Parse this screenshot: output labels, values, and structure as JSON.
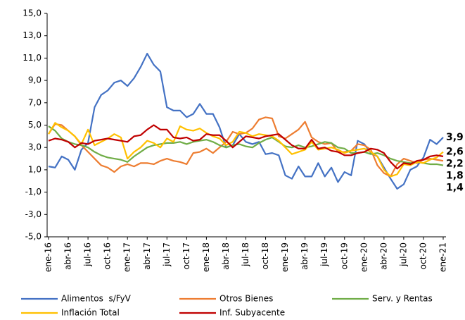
{
  "chart_data": {
    "type": "line",
    "categories": [
      "ene-16",
      null,
      null,
      "abr-16",
      null,
      null,
      "jul-16",
      null,
      null,
      "oct-16",
      null,
      null,
      "ene-17",
      null,
      null,
      "abr-17",
      null,
      null,
      "jul-17",
      null,
      null,
      "oct-17",
      null,
      null,
      "ene-18",
      null,
      null,
      "abr-18",
      null,
      null,
      "jul-18",
      null,
      null,
      "oct-18",
      null,
      null,
      "ene-19",
      null,
      null,
      "abr-19",
      null,
      null,
      "jul-19",
      null,
      null,
      "oct-19",
      null,
      null,
      "ene-20",
      null,
      null,
      "abr-20",
      null,
      null,
      "jul-20",
      null,
      null,
      "oct-20",
      null,
      null,
      "ene-21"
    ],
    "series": [
      {
        "name": "Alimentos  s/FyV",
        "color": "#4472c4",
        "values": [
          1.3,
          1.2,
          2.2,
          1.9,
          1.0,
          2.8,
          3.4,
          6.6,
          7.7,
          8.1,
          8.8,
          9.0,
          8.5,
          9.2,
          10.2,
          11.4,
          10.4,
          9.8,
          6.6,
          6.3,
          6.3,
          5.7,
          6.0,
          6.9,
          6.0,
          6.0,
          4.8,
          3.0,
          3.2,
          4.2,
          3.5,
          3.3,
          3.5,
          2.4,
          2.5,
          2.3,
          0.5,
          0.2,
          1.3,
          0.4,
          0.4,
          1.6,
          0.4,
          1.2,
          -0.1,
          0.8,
          0.5,
          3.6,
          3.3,
          2.5,
          2.2,
          1.2,
          0.2,
          -0.7,
          -0.3,
          1.0,
          1.3,
          2.1,
          3.7,
          3.3,
          3.9
        ],
        "value_labels": [
          null,
          null,
          null,
          null,
          null,
          null,
          null,
          null,
          null,
          null,
          null,
          null,
          null,
          null,
          null,
          null,
          null,
          null,
          null,
          null,
          null,
          null,
          null,
          null,
          null,
          null,
          null,
          null,
          null,
          null,
          null,
          null,
          null,
          null,
          null,
          null,
          null,
          null,
          null,
          null,
          null,
          null,
          null,
          null,
          null,
          null,
          null,
          null,
          null,
          null,
          null,
          null,
          null,
          null,
          null,
          null,
          null,
          null,
          null,
          null,
          "3,9"
        ]
      },
      {
        "name": "Otros Bienes",
        "color": "#ed7d31",
        "values": [
          4.2,
          5.1,
          5.0,
          4.5,
          4.0,
          3.2,
          2.6,
          2.0,
          1.4,
          1.2,
          0.8,
          1.3,
          1.5,
          1.3,
          1.6,
          1.6,
          1.5,
          1.8,
          2.0,
          1.8,
          1.7,
          1.5,
          2.5,
          2.6,
          2.9,
          2.5,
          3.0,
          3.5,
          4.4,
          4.2,
          4.3,
          4.7,
          5.5,
          5.7,
          5.6,
          4.0,
          3.8,
          4.2,
          4.6,
          5.3,
          3.9,
          3.5,
          3.3,
          3.4,
          2.6,
          2.6,
          2.7,
          3.3,
          3.2,
          2.8,
          1.4,
          0.7,
          0.4,
          1.5,
          2.0,
          1.8,
          1.6,
          1.9,
          2.0,
          1.9,
          1.8
        ],
        "value_labels": [
          null,
          null,
          null,
          null,
          null,
          null,
          null,
          null,
          null,
          null,
          null,
          null,
          null,
          null,
          null,
          null,
          null,
          null,
          null,
          null,
          null,
          null,
          null,
          null,
          null,
          null,
          null,
          null,
          null,
          null,
          null,
          null,
          null,
          null,
          null,
          null,
          null,
          null,
          null,
          null,
          null,
          null,
          null,
          null,
          null,
          null,
          null,
          null,
          null,
          null,
          null,
          null,
          null,
          null,
          null,
          null,
          null,
          null,
          null,
          null,
          "1,8"
        ]
      },
      {
        "name": "Serv. y Rentas",
        "color": "#70ad47",
        "values": [
          4.9,
          4.5,
          3.8,
          3.5,
          3.3,
          3.2,
          3.0,
          2.6,
          2.3,
          2.1,
          2.0,
          1.9,
          1.7,
          2.2,
          2.6,
          3.0,
          3.2,
          3.3,
          3.4,
          3.4,
          3.5,
          3.3,
          3.5,
          3.6,
          3.7,
          3.5,
          3.2,
          3.0,
          3.2,
          3.3,
          3.1,
          3.0,
          3.4,
          3.7,
          3.9,
          3.5,
          3.1,
          3.0,
          3.2,
          3.0,
          3.1,
          3.3,
          3.5,
          3.4,
          3.0,
          2.9,
          2.5,
          2.5,
          2.6,
          2.4,
          2.5,
          2.3,
          2.0,
          1.8,
          1.7,
          1.6,
          1.7,
          1.6,
          1.5,
          1.5,
          1.4
        ],
        "value_labels": [
          null,
          null,
          null,
          null,
          null,
          null,
          null,
          null,
          null,
          null,
          null,
          null,
          null,
          null,
          null,
          null,
          null,
          null,
          null,
          null,
          null,
          null,
          null,
          null,
          null,
          null,
          null,
          null,
          null,
          null,
          null,
          null,
          null,
          null,
          null,
          null,
          null,
          null,
          null,
          null,
          null,
          null,
          null,
          null,
          null,
          null,
          null,
          null,
          null,
          null,
          null,
          null,
          null,
          null,
          null,
          null,
          null,
          null,
          null,
          null,
          "1,4"
        ]
      },
      {
        "name": "Inflación Total",
        "color": "#ffc000",
        "values": [
          4.2,
          5.2,
          4.8,
          4.5,
          4.0,
          3.3,
          4.6,
          3.2,
          3.5,
          3.8,
          4.2,
          3.9,
          2.0,
          2.6,
          3.0,
          3.6,
          3.4,
          3.0,
          3.8,
          3.5,
          4.9,
          4.6,
          4.5,
          4.7,
          4.3,
          4.0,
          3.8,
          3.2,
          3.5,
          4.4,
          4.3,
          4.0,
          4.2,
          4.1,
          4.0,
          3.6,
          3.0,
          2.4,
          2.6,
          2.8,
          3.5,
          2.8,
          2.9,
          3.0,
          2.8,
          2.5,
          2.7,
          2.8,
          2.9,
          2.6,
          2.2,
          1.0,
          0.4,
          0.6,
          1.5,
          1.4,
          1.7,
          1.6,
          1.9,
          2.1,
          2.6
        ],
        "value_labels": [
          null,
          null,
          null,
          null,
          null,
          null,
          null,
          null,
          null,
          null,
          null,
          null,
          null,
          null,
          null,
          null,
          null,
          null,
          null,
          null,
          null,
          null,
          null,
          null,
          null,
          null,
          null,
          null,
          null,
          null,
          null,
          null,
          null,
          null,
          null,
          null,
          null,
          null,
          null,
          null,
          null,
          null,
          null,
          null,
          null,
          null,
          null,
          null,
          null,
          null,
          null,
          null,
          null,
          null,
          null,
          null,
          null,
          null,
          null,
          null,
          "2,6"
        ]
      },
      {
        "name": "Inf. Subyacente",
        "color": "#c00000",
        "values": [
          3.6,
          3.8,
          3.7,
          3.5,
          3.0,
          3.4,
          3.3,
          3.6,
          3.7,
          3.8,
          3.7,
          3.6,
          3.5,
          4.0,
          4.1,
          4.6,
          5.0,
          4.6,
          4.6,
          3.9,
          3.8,
          3.9,
          3.6,
          3.7,
          4.2,
          4.1,
          4.1,
          3.6,
          3.0,
          3.5,
          4.0,
          3.9,
          3.8,
          4.0,
          4.1,
          4.2,
          3.7,
          3.2,
          2.9,
          2.9,
          3.7,
          2.9,
          3.0,
          2.7,
          2.6,
          2.3,
          2.3,
          2.5,
          2.6,
          2.9,
          2.8,
          2.5,
          1.7,
          1.1,
          1.6,
          1.5,
          1.8,
          1.9,
          2.2,
          2.3,
          2.2
        ],
        "value_labels": [
          null,
          null,
          null,
          null,
          null,
          null,
          null,
          null,
          null,
          null,
          null,
          null,
          null,
          null,
          null,
          null,
          null,
          null,
          null,
          null,
          null,
          null,
          null,
          null,
          null,
          null,
          null,
          null,
          null,
          null,
          null,
          null,
          null,
          null,
          null,
          null,
          null,
          null,
          null,
          null,
          null,
          null,
          null,
          null,
          null,
          null,
          null,
          null,
          null,
          null,
          null,
          null,
          null,
          null,
          null,
          null,
          null,
          null,
          null,
          null,
          "2,2"
        ]
      }
    ],
    "ylim": [
      -5,
      15
    ],
    "yticks": [
      {
        "value": -5,
        "label": "-5,0"
      },
      {
        "value": -3,
        "label": "-3,0"
      },
      {
        "value": -1,
        "label": "-1,0"
      },
      {
        "value": 1,
        "label": "1,0"
      },
      {
        "value": 3,
        "label": "3,0"
      },
      {
        "value": 5,
        "label": "5,0"
      },
      {
        "value": 7,
        "label": "7,0"
      },
      {
        "value": 9,
        "label": "9,0"
      },
      {
        "value": 11,
        "label": "11,0"
      },
      {
        "value": 13,
        "label": "13,0"
      },
      {
        "value": 15,
        "label": "15,0"
      }
    ],
    "grid": false,
    "legend": "bottom"
  }
}
